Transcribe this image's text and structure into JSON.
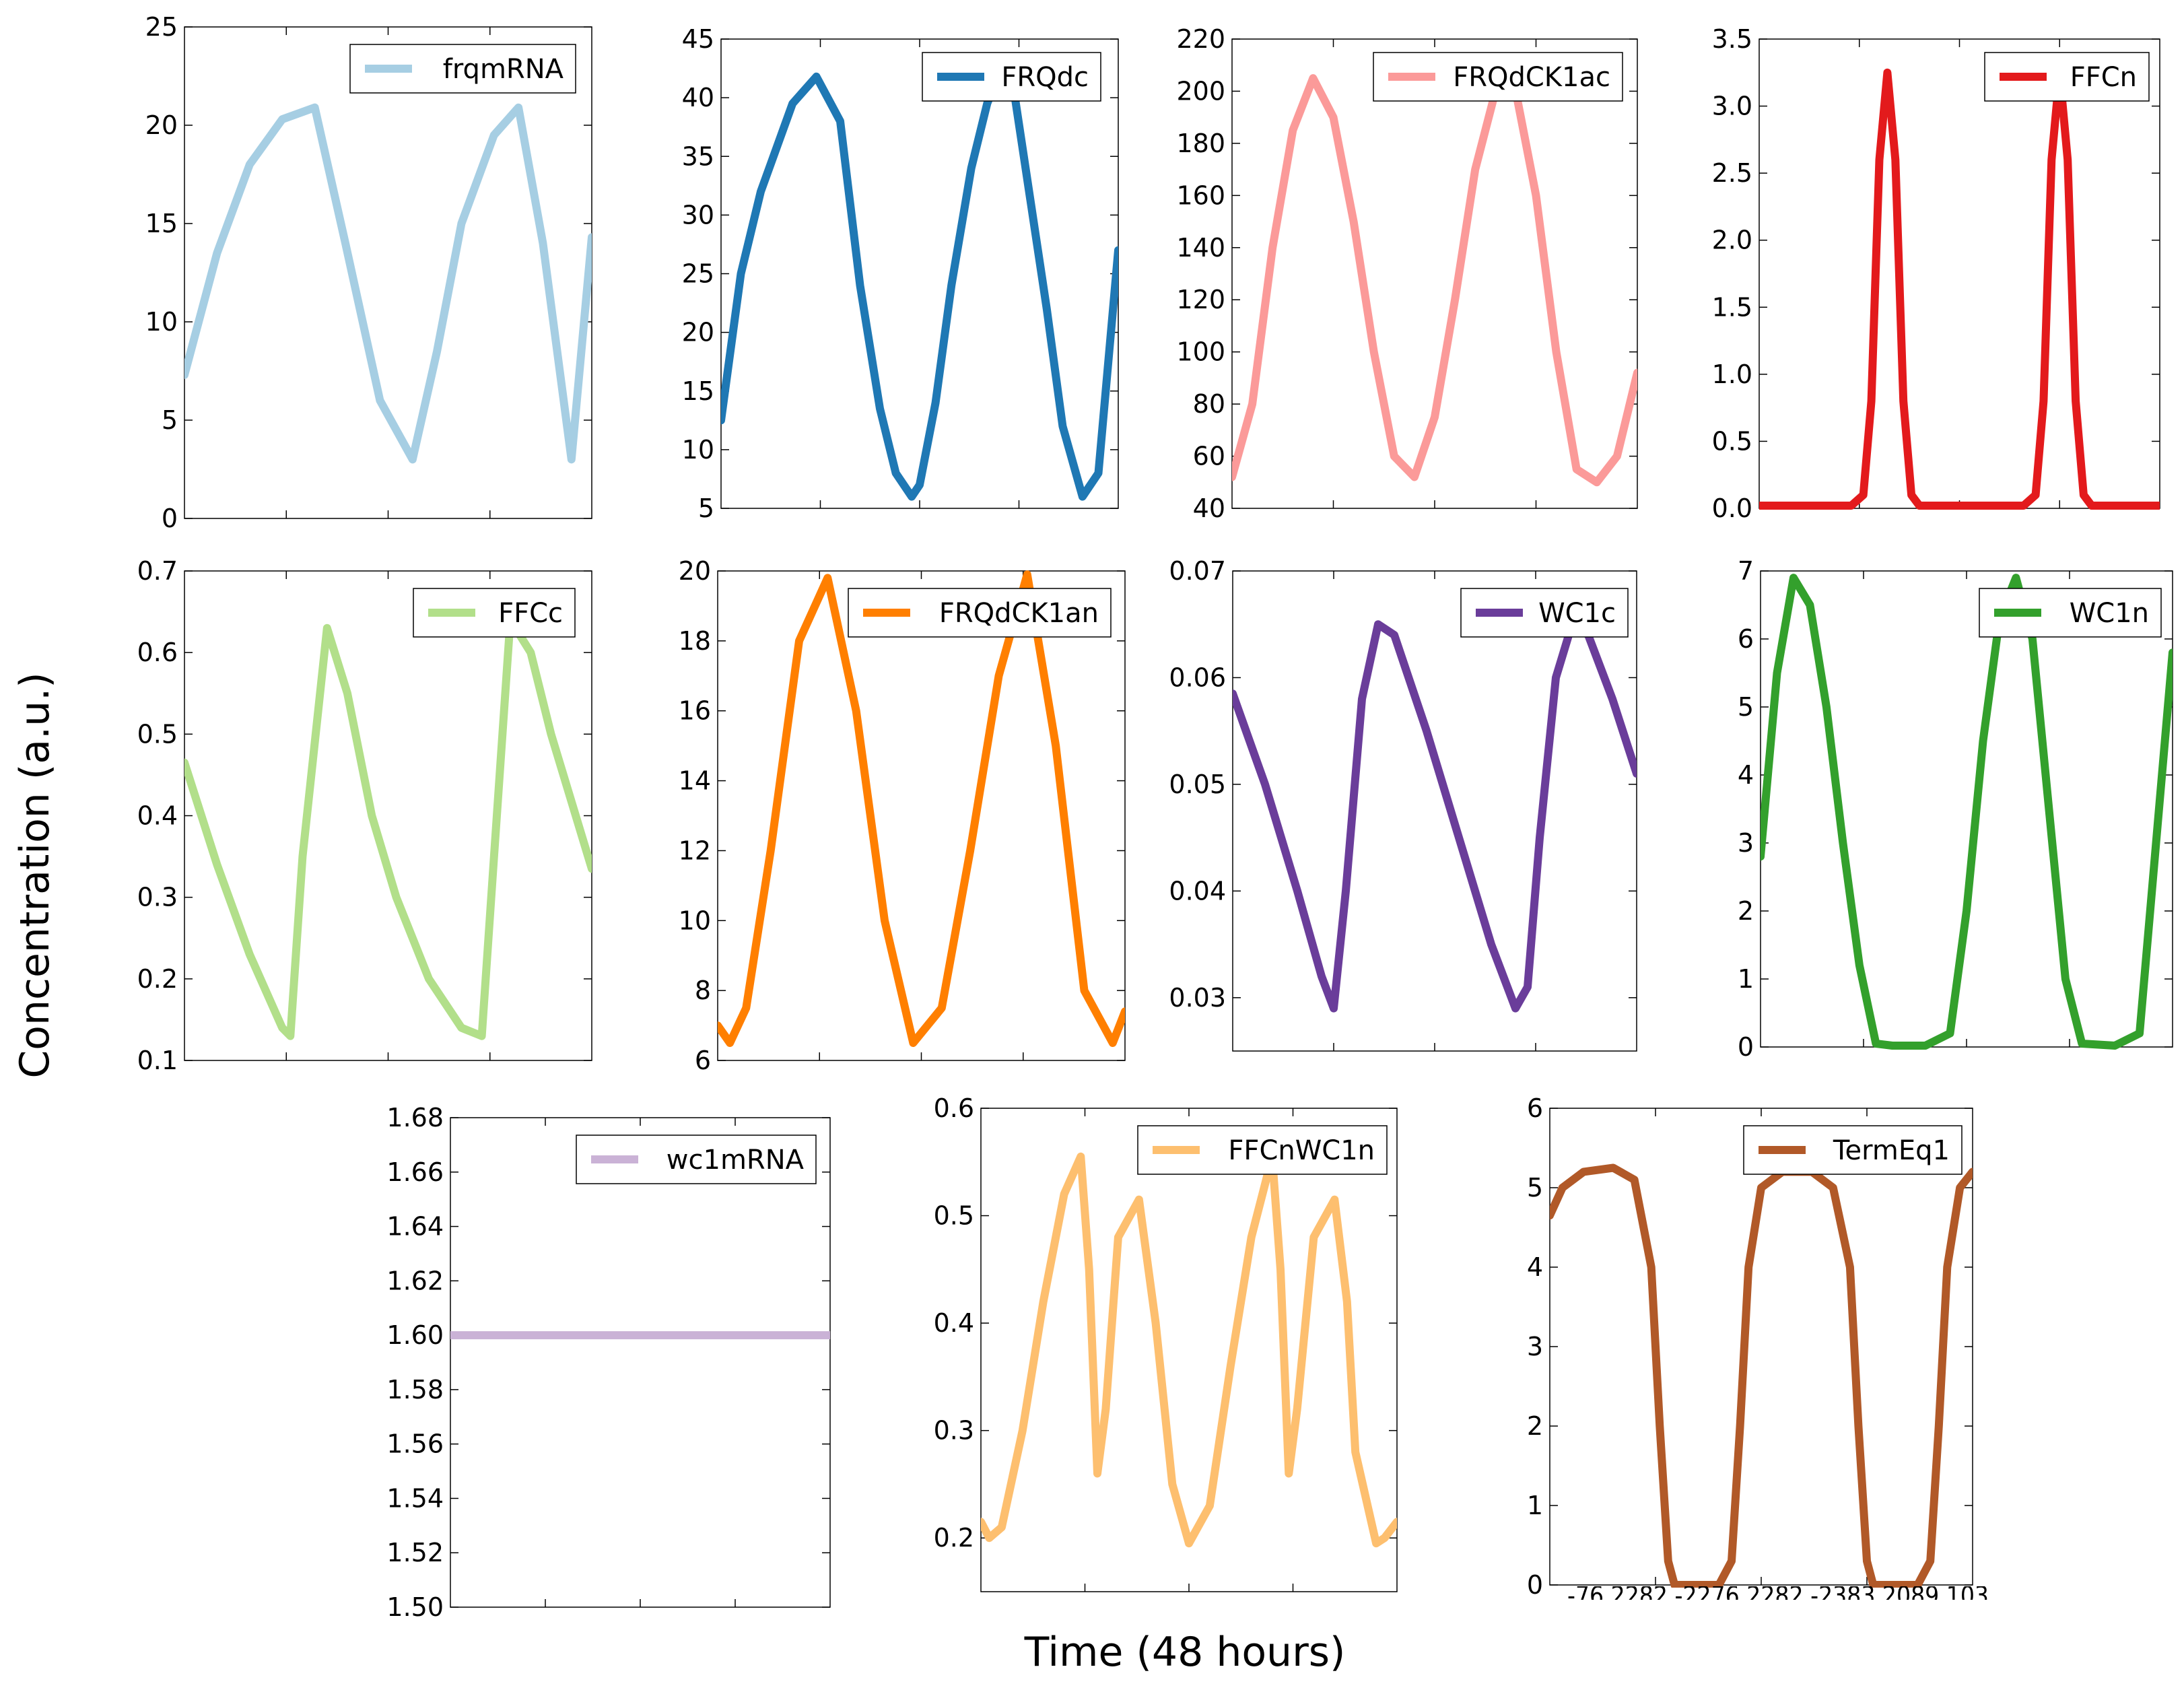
{
  "figure": {
    "xlabel": "Time (48 hours)",
    "ylabel": "Concentration (a.u.)",
    "bottom_axis_tick_text": "-76 2282 -2276 2282 -2383 2089 103"
  },
  "chart_data": [
    {
      "type": "line",
      "legend": "frqmRNA",
      "color": "#a6cee3",
      "ylim": [
        0,
        25
      ],
      "yticks": [
        0,
        5,
        10,
        15,
        20,
        25
      ],
      "ytick_labels": [
        "0",
        "5",
        "10",
        "15",
        "20",
        "25"
      ],
      "x": [
        0,
        8,
        16,
        24,
        32,
        39.5,
        48,
        56,
        62,
        68,
        76,
        82,
        88,
        95,
        100
      ],
      "y": [
        7.3,
        13.5,
        18.0,
        20.3,
        20.9,
        14.0,
        6.0,
        3.0,
        8.5,
        15.0,
        19.5,
        20.9,
        14.0,
        3.0,
        14.3
      ]
    },
    {
      "type": "line",
      "legend": "FRQdc",
      "color": "#1f78b4",
      "ylim": [
        5,
        45
      ],
      "yticks": [
        5,
        10,
        15,
        20,
        25,
        30,
        35,
        40,
        45
      ],
      "ytick_labels": [
        "5",
        "10",
        "15",
        "20",
        "25",
        "30",
        "35",
        "40",
        "45"
      ],
      "x": [
        0,
        5,
        10,
        18,
        24,
        30,
        35,
        40,
        44,
        48,
        50,
        54,
        58,
        63,
        67,
        70,
        74,
        82,
        86,
        91,
        95,
        100
      ],
      "y": [
        12.5,
        25.0,
        32.0,
        39.5,
        41.8,
        38.0,
        24.0,
        13.5,
        8.0,
        6.0,
        7.0,
        14.0,
        24.0,
        34.0,
        39.5,
        42.0,
        40.0,
        22.0,
        12.0,
        6.0,
        8.0,
        27.0
      ]
    },
    {
      "type": "line",
      "legend": "FRQdCK1ac",
      "color": "#fb9a99",
      "ylim": [
        40,
        220
      ],
      "yticks": [
        40,
        60,
        80,
        100,
        120,
        140,
        160,
        180,
        200,
        220
      ],
      "ytick_labels": [
        "40",
        "60",
        "80",
        "100",
        "120",
        "140",
        "160",
        "180",
        "200",
        "220"
      ],
      "x": [
        0,
        5,
        10,
        15,
        20,
        25,
        30,
        35,
        40,
        45,
        50,
        55,
        60,
        65,
        70,
        75,
        80,
        85,
        90,
        95,
        100
      ],
      "y": [
        52,
        80,
        140,
        185,
        205,
        190,
        150,
        100,
        60,
        52,
        75,
        120,
        170,
        200,
        200,
        160,
        100,
        55,
        50,
        60,
        92
      ]
    },
    {
      "type": "line",
      "legend": "FFCn",
      "color": "#e31a1c",
      "ylim": [
        0,
        3.5
      ],
      "yticks": [
        0,
        0.5,
        1.0,
        1.5,
        2.0,
        2.5,
        3.0,
        3.5
      ],
      "ytick_labels": [
        "0.0",
        "0.5",
        "1.0",
        "1.5",
        "2.0",
        "2.5",
        "3.0",
        "3.5"
      ],
      "x": [
        0,
        23,
        26,
        28,
        30,
        32,
        34,
        36,
        38,
        40,
        44,
        66,
        69,
        71,
        73,
        75,
        77,
        79,
        81,
        83,
        87,
        100
      ],
      "y": [
        0.02,
        0.02,
        0.1,
        0.8,
        2.6,
        3.25,
        2.6,
        0.8,
        0.1,
        0.02,
        0.02,
        0.02,
        0.1,
        0.8,
        2.6,
        3.25,
        2.6,
        0.8,
        0.1,
        0.02,
        0.02,
        0.02
      ]
    },
    {
      "type": "line",
      "legend": "FFCc",
      "color": "#b2df8a",
      "ylim": [
        0.1,
        0.7
      ],
      "yticks": [
        0.1,
        0.2,
        0.3,
        0.4,
        0.5,
        0.6,
        0.7
      ],
      "ytick_labels": [
        "0.1",
        "0.2",
        "0.3",
        "0.4",
        "0.5",
        "0.6",
        "0.7"
      ],
      "x": [
        0,
        8,
        16,
        24,
        26,
        29,
        35,
        40,
        46,
        52,
        60,
        68,
        73,
        76,
        80,
        85,
        90,
        100
      ],
      "y": [
        0.465,
        0.34,
        0.23,
        0.14,
        0.13,
        0.35,
        0.63,
        0.55,
        0.4,
        0.3,
        0.2,
        0.14,
        0.13,
        0.35,
        0.64,
        0.6,
        0.5,
        0.335
      ]
    },
    {
      "type": "line",
      "legend": "FRQdCK1an",
      "color": "#ff7f00",
      "ylim": [
        6,
        20
      ],
      "yticks": [
        6,
        8,
        10,
        12,
        14,
        16,
        18,
        20
      ],
      "ytick_labels": [
        "6",
        "8",
        "10",
        "12",
        "14",
        "16",
        "18",
        "20"
      ],
      "x": [
        0,
        3,
        7,
        13,
        20,
        27,
        34,
        41,
        48,
        55,
        62,
        69,
        76,
        83,
        90,
        97,
        100
      ],
      "y": [
        7.0,
        6.5,
        7.5,
        12.0,
        18.0,
        19.8,
        16.0,
        10.0,
        6.5,
        7.5,
        12.0,
        17.0,
        19.9,
        15.0,
        8.0,
        6.5,
        7.4
      ]
    },
    {
      "type": "line",
      "legend": "WC1c",
      "color": "#6a3d9a",
      "ylim": [
        0.025,
        0.07
      ],
      "yticks": [
        0.03,
        0.04,
        0.05,
        0.06,
        0.07
      ],
      "ytick_labels": [
        "0.03",
        "0.04",
        "0.05",
        "0.06",
        "0.07"
      ],
      "x": [
        0,
        8,
        16,
        22,
        25,
        28,
        32,
        36,
        40,
        48,
        56,
        64,
        70,
        73,
        76,
        80,
        84,
        88,
        94,
        100
      ],
      "y": [
        0.0585,
        0.05,
        0.04,
        0.032,
        0.029,
        0.04,
        0.058,
        0.065,
        0.064,
        0.055,
        0.045,
        0.035,
        0.029,
        0.031,
        0.045,
        0.06,
        0.065,
        0.064,
        0.058,
        0.051
      ]
    },
    {
      "type": "line",
      "legend": "WC1n",
      "color": "#33a02c",
      "ylim": [
        0,
        7
      ],
      "yticks": [
        0,
        1,
        2,
        3,
        4,
        5,
        6,
        7
      ],
      "ytick_labels": [
        "0",
        "1",
        "2",
        "3",
        "4",
        "5",
        "6",
        "7"
      ],
      "x": [
        0,
        4,
        8,
        12,
        16,
        20,
        24,
        28,
        32,
        40,
        46,
        50,
        54,
        58,
        62,
        66,
        70,
        74,
        78,
        86,
        92,
        96,
        100
      ],
      "y": [
        2.8,
        5.5,
        6.9,
        6.5,
        5.0,
        3.0,
        1.2,
        0.05,
        0.02,
        0.02,
        0.2,
        2.0,
        4.5,
        6.3,
        6.9,
        6.0,
        3.5,
        1.0,
        0.05,
        0.02,
        0.2,
        3.0,
        5.8
      ]
    },
    {
      "type": "line",
      "legend": "wc1mRNA",
      "color": "#cab2d6",
      "ylim": [
        1.5,
        1.68
      ],
      "yticks": [
        1.5,
        1.52,
        1.54,
        1.56,
        1.58,
        1.6,
        1.62,
        1.64,
        1.66,
        1.68
      ],
      "ytick_labels": [
        "1.50",
        "1.52",
        "1.54",
        "1.56",
        "1.58",
        "1.60",
        "1.62",
        "1.64",
        "1.66",
        "1.68"
      ],
      "x": [
        0,
        100
      ],
      "y": [
        1.6,
        1.6
      ]
    },
    {
      "type": "line",
      "legend": "FFCnWC1n",
      "color": "#fdbf6f",
      "ylim": [
        0.15,
        0.6
      ],
      "yticks": [
        0.2,
        0.3,
        0.4,
        0.5,
        0.6
      ],
      "ytick_labels": [
        "0.2",
        "0.3",
        "0.4",
        "0.5",
        "0.6"
      ],
      "x": [
        0,
        2,
        5,
        10,
        15,
        20,
        24,
        26,
        28,
        30,
        33,
        38,
        42,
        46,
        50,
        55,
        60,
        65,
        70,
        72,
        74,
        76,
        80,
        85,
        88,
        90,
        95,
        97,
        100
      ],
      "y": [
        0.215,
        0.2,
        0.21,
        0.3,
        0.42,
        0.52,
        0.555,
        0.45,
        0.26,
        0.32,
        0.48,
        0.515,
        0.4,
        0.25,
        0.195,
        0.23,
        0.36,
        0.48,
        0.555,
        0.45,
        0.26,
        0.32,
        0.48,
        0.515,
        0.42,
        0.28,
        0.195,
        0.2,
        0.215
      ]
    },
    {
      "type": "line",
      "legend": "TermEq1",
      "color": "#b15928",
      "ylim": [
        0,
        6
      ],
      "yticks": [
        0,
        1,
        2,
        3,
        4,
        5,
        6
      ],
      "ytick_labels": [
        "0",
        "1",
        "2",
        "3",
        "4",
        "5",
        "6"
      ],
      "x": [
        0,
        3,
        8,
        15,
        20,
        24,
        26,
        28,
        29.5,
        31,
        40,
        43,
        45,
        47,
        50,
        55,
        62,
        67,
        71,
        73,
        75,
        76.5,
        78,
        87,
        90,
        92,
        94,
        97,
        100
      ],
      "y": [
        4.65,
        5.0,
        5.2,
        5.25,
        5.1,
        4.0,
        2.0,
        0.3,
        0.0,
        0.0,
        0.0,
        0.3,
        2.0,
        4.0,
        5.0,
        5.2,
        5.2,
        5.0,
        4.0,
        2.0,
        0.3,
        0.0,
        0.0,
        0.0,
        0.3,
        2.0,
        4.0,
        5.0,
        5.2
      ]
    }
  ]
}
